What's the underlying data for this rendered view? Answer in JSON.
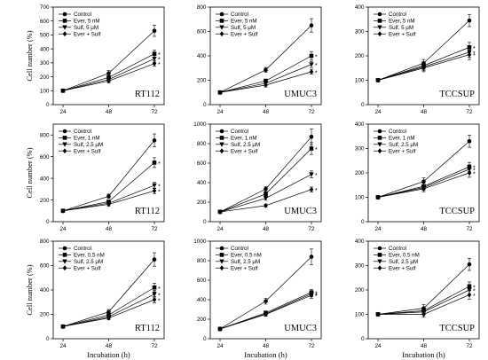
{
  "figure": {
    "ylabel": "Cell number (%)",
    "xlabel": "Incubation (h)"
  },
  "chart_data": [
    {
      "type": "line",
      "panel": "r1c1",
      "label": "RT112",
      "x": [
        24,
        48,
        72
      ],
      "xticks": [
        "24",
        "48",
        "72"
      ],
      "ylim": [
        0,
        700
      ],
      "yticks": [
        0,
        100,
        200,
        300,
        400,
        500,
        600,
        700
      ],
      "series": [
        {
          "name": "Control",
          "marker": "circle",
          "values": [
            100,
            225,
            530
          ],
          "err": [
            0,
            20,
            40
          ]
        },
        {
          "name": "Ever, 5 nM",
          "marker": "square",
          "values": [
            100,
            195,
            365
          ],
          "err": [
            0,
            15,
            25
          ]
        },
        {
          "name": "Sulf, 5 μM",
          "marker": "triangle-down",
          "values": [
            100,
            180,
            330
          ],
          "err": [
            0,
            15,
            25
          ]
        },
        {
          "name": "Ever + Sulf",
          "marker": "diamond",
          "values": [
            100,
            170,
            295
          ],
          "err": [
            0,
            15,
            20
          ]
        }
      ],
      "stars": [
        "*",
        "*",
        "*"
      ]
    },
    {
      "type": "line",
      "panel": "r1c2",
      "label": "UMUC3",
      "x": [
        24,
        48,
        72
      ],
      "xticks": [
        "24",
        "48",
        "72"
      ],
      "ylim": [
        0,
        800
      ],
      "yticks": [
        0,
        200,
        400,
        600,
        800
      ],
      "series": [
        {
          "name": "Control",
          "marker": "circle",
          "values": [
            100,
            285,
            650
          ],
          "err": [
            0,
            20,
            55
          ]
        },
        {
          "name": "Ever, 5 nM",
          "marker": "square",
          "values": [
            100,
            195,
            400
          ],
          "err": [
            0,
            15,
            35
          ]
        },
        {
          "name": "Sulf, 5 μM",
          "marker": "triangle-down",
          "values": [
            100,
            175,
            330
          ],
          "err": [
            0,
            15,
            25
          ]
        },
        {
          "name": "Ever + Sulf",
          "marker": "diamond",
          "values": [
            100,
            160,
            270
          ],
          "err": [
            0,
            15,
            20
          ]
        }
      ],
      "stars": [
        "*",
        "*",
        "*"
      ]
    },
    {
      "type": "line",
      "panel": "r1c3",
      "label": "TCCSUP",
      "x": [
        24,
        48,
        72
      ],
      "xticks": [
        "24",
        "48",
        "72"
      ],
      "ylim": [
        0,
        400
      ],
      "yticks": [
        0,
        100,
        200,
        300,
        400
      ],
      "series": [
        {
          "name": "Control",
          "marker": "circle",
          "values": [
            100,
            170,
            345
          ],
          "err": [
            0,
            15,
            25
          ]
        },
        {
          "name": "Ever, 5 nM",
          "marker": "square",
          "values": [
            100,
            160,
            235
          ],
          "err": [
            0,
            15,
            20
          ]
        },
        {
          "name": "Sulf, 5 μM",
          "marker": "triangle-down",
          "values": [
            100,
            155,
            215
          ],
          "err": [
            0,
            15,
            20
          ]
        },
        {
          "name": "Ever + Sulf",
          "marker": "diamond",
          "values": [
            100,
            150,
            205
          ],
          "err": [
            0,
            15,
            20
          ]
        }
      ],
      "stars": [
        "*",
        "*",
        "*"
      ]
    },
    {
      "type": "line",
      "panel": "r2c1",
      "label": "RT112",
      "x": [
        24,
        48,
        72
      ],
      "xticks": [
        "24",
        "48",
        "72"
      ],
      "ylim": [
        0,
        900
      ],
      "yticks": [
        0,
        200,
        400,
        600,
        800
      ],
      "series": [
        {
          "name": "Control",
          "marker": "circle",
          "values": [
            100,
            235,
            750
          ],
          "err": [
            0,
            20,
            60
          ]
        },
        {
          "name": "Ever, 1 nM",
          "marker": "square",
          "values": [
            100,
            185,
            545
          ],
          "err": [
            0,
            15,
            45
          ]
        },
        {
          "name": "Sulf, 2.5 μM",
          "marker": "triangle-down",
          "values": [
            100,
            170,
            335
          ],
          "err": [
            0,
            15,
            30
          ]
        },
        {
          "name": "Ever + Sulf",
          "marker": "diamond",
          "values": [
            100,
            160,
            285
          ],
          "err": [
            0,
            15,
            25
          ]
        }
      ],
      "stars": [
        "*",
        "*",
        "*"
      ]
    },
    {
      "type": "line",
      "panel": "r2c2",
      "label": "UMUC3",
      "x": [
        24,
        48,
        72
      ],
      "xticks": [
        "24",
        "48",
        "72"
      ],
      "ylim": [
        0,
        1000
      ],
      "yticks": [
        0,
        200,
        400,
        600,
        800,
        1000
      ],
      "series": [
        {
          "name": "Control",
          "marker": "circle",
          "values": [
            100,
            335,
            870
          ],
          "err": [
            0,
            25,
            80
          ]
        },
        {
          "name": "Ever, 1 nM",
          "marker": "square",
          "values": [
            100,
            285,
            750
          ],
          "err": [
            0,
            20,
            60
          ]
        },
        {
          "name": "Sulf, 2.5 μM",
          "marker": "triangle-down",
          "values": [
            100,
            240,
            485
          ],
          "err": [
            0,
            20,
            35
          ]
        },
        {
          "name": "Ever + Sulf",
          "marker": "diamond",
          "values": [
            100,
            165,
            330
          ],
          "err": [
            0,
            15,
            25
          ]
        }
      ],
      "stars": [
        "*",
        "*",
        "*"
      ]
    },
    {
      "type": "line",
      "panel": "r2c3",
      "label": "TCCSUP",
      "x": [
        24,
        48,
        72
      ],
      "xticks": [
        "24",
        "48",
        "72"
      ],
      "ylim": [
        0,
        400
      ],
      "yticks": [
        0,
        100,
        200,
        300,
        400
      ],
      "series": [
        {
          "name": "Control",
          "marker": "circle",
          "values": [
            100,
            165,
            330
          ],
          "err": [
            0,
            15,
            25
          ]
        },
        {
          "name": "Ever, 1 nM",
          "marker": "square",
          "values": [
            100,
            145,
            225
          ],
          "err": [
            0,
            12,
            18
          ]
        },
        {
          "name": "Sulf, 2.5 μM",
          "marker": "triangle-down",
          "values": [
            100,
            140,
            215
          ],
          "err": [
            0,
            12,
            18
          ]
        },
        {
          "name": "Ever + Sulf",
          "marker": "diamond",
          "values": [
            100,
            135,
            200
          ],
          "err": [
            0,
            12,
            18
          ]
        }
      ],
      "stars": [
        "*",
        "*",
        "*"
      ]
    },
    {
      "type": "line",
      "panel": "r3c1",
      "label": "RT112",
      "x": [
        24,
        48,
        72
      ],
      "xticks": [
        "24",
        "48",
        "72"
      ],
      "ylim": [
        0,
        800
      ],
      "yticks": [
        0,
        200,
        400,
        600,
        800
      ],
      "series": [
        {
          "name": "Control",
          "marker": "circle",
          "values": [
            100,
            220,
            650
          ],
          "err": [
            0,
            20,
            55
          ]
        },
        {
          "name": "Ever, 0.5 nM",
          "marker": "square",
          "values": [
            100,
            195,
            420
          ],
          "err": [
            0,
            15,
            35
          ]
        },
        {
          "name": "Sulf, 2.5 μM",
          "marker": "triangle-down",
          "values": [
            100,
            180,
            365
          ],
          "err": [
            0,
            15,
            30
          ]
        },
        {
          "name": "Ever + Sulf",
          "marker": "diamond",
          "values": [
            100,
            170,
            320
          ],
          "err": [
            0,
            15,
            25
          ]
        }
      ],
      "stars": [
        "*",
        "*",
        "*"
      ]
    },
    {
      "type": "line",
      "panel": "r3c2",
      "label": "UMUC3",
      "x": [
        24,
        48,
        72
      ],
      "xticks": [
        "24",
        "48",
        "72"
      ],
      "ylim": [
        0,
        1000
      ],
      "yticks": [
        0,
        200,
        400,
        600,
        800,
        1000
      ],
      "series": [
        {
          "name": "Control",
          "marker": "circle",
          "values": [
            100,
            385,
            840
          ],
          "err": [
            0,
            30,
            80
          ]
        },
        {
          "name": "Ever, 0.5 nM",
          "marker": "square",
          "values": [
            100,
            265,
            475
          ],
          "err": [
            0,
            20,
            30
          ]
        },
        {
          "name": "Sulf, 2.5 μM",
          "marker": "triangle-down",
          "values": [
            100,
            255,
            460
          ],
          "err": [
            0,
            20,
            30
          ]
        },
        {
          "name": "Ever + Sulf",
          "marker": "diamond",
          "values": [
            100,
            250,
            445
          ],
          "err": [
            0,
            20,
            30
          ]
        }
      ],
      "stars": [
        "*",
        "*",
        "*"
      ]
    },
    {
      "type": "line",
      "panel": "r3c3",
      "label": "TCCSUP",
      "x": [
        24,
        48,
        72
      ],
      "xticks": [
        "24",
        "48",
        "72"
      ],
      "ylim": [
        0,
        400
      ],
      "yticks": [
        0,
        100,
        200,
        300,
        400
      ],
      "series": [
        {
          "name": "Control",
          "marker": "circle",
          "values": [
            100,
            125,
            305
          ],
          "err": [
            0,
            15,
            25
          ]
        },
        {
          "name": "Ever, 0.5 nM",
          "marker": "square",
          "values": [
            100,
            115,
            215
          ],
          "err": [
            0,
            12,
            18
          ]
        },
        {
          "name": "Sulf, 2.5 μM",
          "marker": "triangle-down",
          "values": [
            100,
            110,
            200
          ],
          "err": [
            0,
            12,
            18
          ]
        },
        {
          "name": "Ever + Sulf",
          "marker": "diamond",
          "values": [
            100,
            100,
            180
          ],
          "err": [
            0,
            12,
            18
          ]
        }
      ],
      "stars": [
        "*",
        "*",
        "*"
      ]
    }
  ]
}
